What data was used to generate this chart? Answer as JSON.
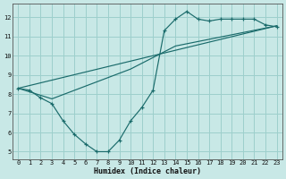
{
  "xlabel": "Humidex (Indice chaleur)",
  "bg_color": "#c8e8e6",
  "grid_color": "#9dcfcc",
  "line_color": "#1a6b6b",
  "xlim": [
    -0.5,
    23.5
  ],
  "ylim": [
    4.6,
    12.7
  ],
  "yticks": [
    5,
    6,
    7,
    8,
    9,
    10,
    11,
    12
  ],
  "xticks": [
    0,
    1,
    2,
    3,
    4,
    5,
    6,
    7,
    8,
    9,
    10,
    11,
    12,
    13,
    14,
    15,
    16,
    17,
    18,
    19,
    20,
    21,
    22,
    23
  ],
  "line1_x": [
    0,
    1,
    2,
    3,
    4,
    5,
    6,
    7,
    8,
    9,
    10,
    11,
    12,
    13,
    14,
    15,
    16,
    17,
    18,
    19,
    20,
    21,
    22,
    23
  ],
  "line1_y": [
    8.3,
    8.2,
    7.8,
    7.5,
    6.6,
    5.9,
    5.4,
    5.0,
    5.0,
    5.6,
    6.6,
    7.3,
    8.2,
    11.3,
    11.9,
    12.3,
    11.9,
    11.8,
    11.9,
    11.9,
    11.9,
    11.9,
    11.6,
    11.5
  ],
  "line2_x": [
    0,
    23
  ],
  "line2_y": [
    8.3,
    11.55
  ],
  "line3_x": [
    0,
    3,
    10,
    14,
    23
  ],
  "line3_y": [
    8.3,
    7.75,
    9.3,
    10.5,
    11.55
  ]
}
